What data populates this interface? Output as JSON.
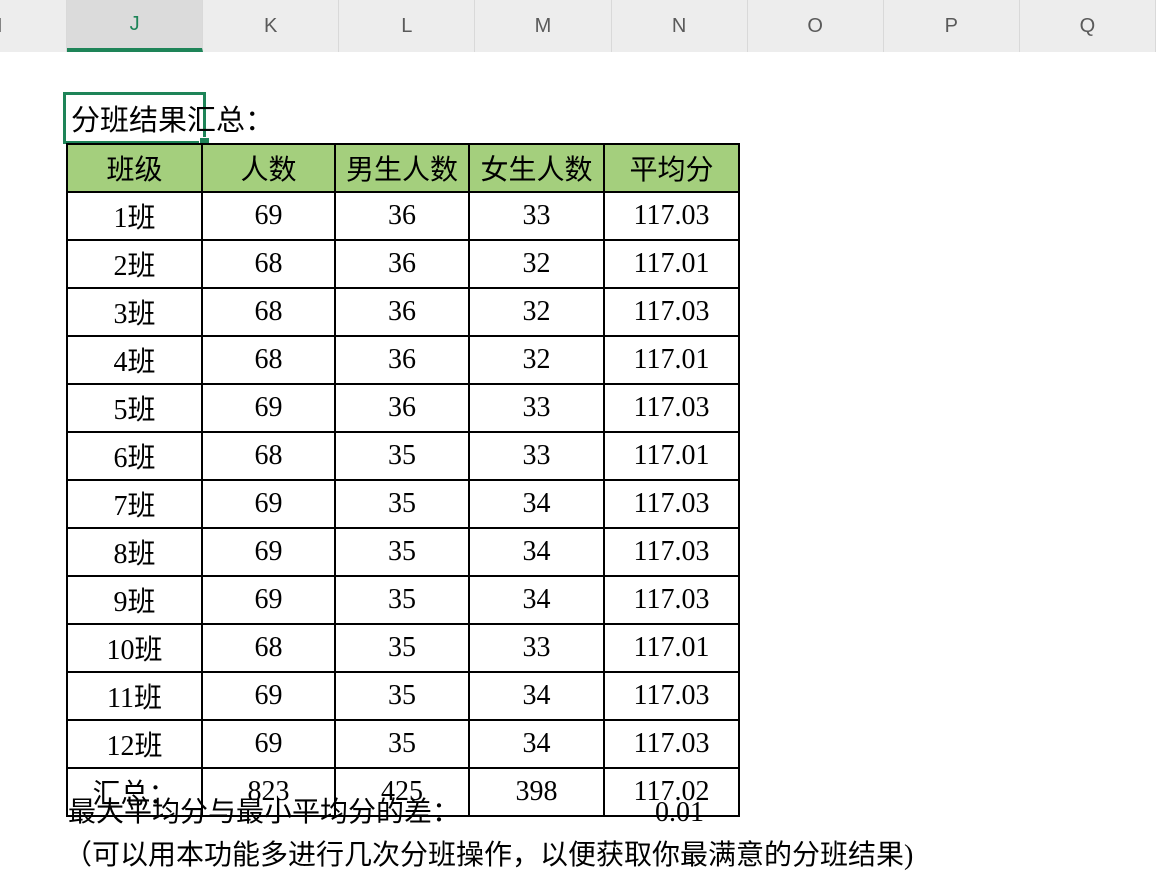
{
  "spreadsheet": {
    "column_headers": [
      "I",
      "J",
      "K",
      "L",
      "M",
      "N",
      "O",
      "P",
      "Q"
    ],
    "selected_column": "J"
  },
  "active_cell": {
    "text": "分班结果汇总："
  },
  "table": {
    "headers": [
      "班级",
      "人数",
      "男生人数",
      "女生人数",
      "平均分"
    ],
    "rows": [
      [
        "1班",
        "69",
        "36",
        "33",
        "117.03"
      ],
      [
        "2班",
        "68",
        "36",
        "32",
        "117.01"
      ],
      [
        "3班",
        "68",
        "36",
        "32",
        "117.03"
      ],
      [
        "4班",
        "68",
        "36",
        "32",
        "117.01"
      ],
      [
        "5班",
        "69",
        "36",
        "33",
        "117.03"
      ],
      [
        "6班",
        "68",
        "35",
        "33",
        "117.01"
      ],
      [
        "7班",
        "69",
        "35",
        "34",
        "117.03"
      ],
      [
        "8班",
        "69",
        "35",
        "34",
        "117.03"
      ],
      [
        "9班",
        "69",
        "35",
        "34",
        "117.03"
      ],
      [
        "10班",
        "68",
        "35",
        "33",
        "117.01"
      ],
      [
        "11班",
        "69",
        "35",
        "34",
        "117.03"
      ],
      [
        "12班",
        "69",
        "35",
        "34",
        "117.03"
      ],
      [
        "汇总：",
        "823",
        "425",
        "398",
        "117.02"
      ]
    ]
  },
  "footer": {
    "diff_label": "最大平均分与最小平均分的差：",
    "diff_value": "0.01",
    "note": "（可以用本功能多进行几次分班操作，以便获取你最满意的分班结果)"
  },
  "colors": {
    "accent_green": "#1E8458",
    "table_header_fill": "#A4CF7D",
    "column_header_bg": "#EDEDED",
    "column_header_selected_bg": "#DBDBDB"
  }
}
